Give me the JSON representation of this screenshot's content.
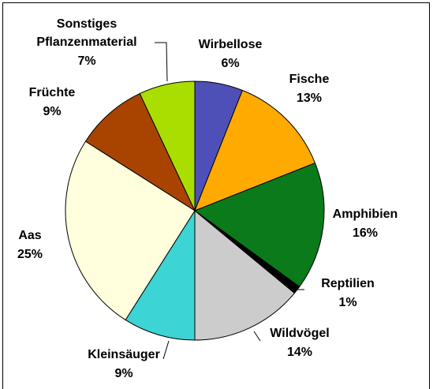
{
  "chart_data": {
    "type": "pie",
    "categories": [
      "Wirbellose",
      "Fische",
      "Amphibien",
      "Reptilien",
      "Wildvögel",
      "Kleinsäuger",
      "Aas",
      "Früchte",
      "Sonstiges\nPflanzenmaterial"
    ],
    "values": [
      6,
      13,
      16,
      1,
      14,
      9,
      25,
      9,
      7
    ],
    "value_labels": [
      "6%",
      "13%",
      "16%",
      "1%",
      "14%",
      "9%",
      "25%",
      "9%",
      "7%"
    ],
    "colors": [
      "#4f4fb8",
      "#ffaa00",
      "#0a7a1a",
      "#000000",
      "#cccccc",
      "#3cd4d4",
      "#ffffdd",
      "#a84400",
      "#aadd00"
    ]
  }
}
